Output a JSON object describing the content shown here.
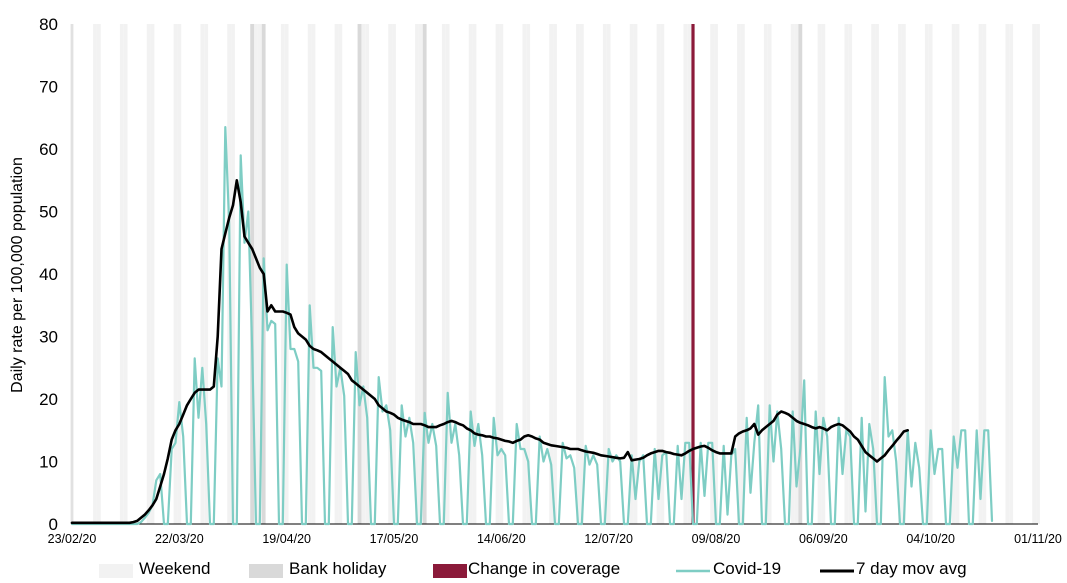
{
  "chart_data": {
    "type": "line",
    "ylabel": "Daily rate per 100,000 population",
    "ylim": [
      0,
      80
    ],
    "yticks": [
      0,
      10,
      20,
      30,
      40,
      50,
      60,
      70,
      80
    ],
    "xlim": [
      "23/02/20",
      "01/11/20"
    ],
    "x_tick_labels": [
      "23/02/20",
      "22/03/20",
      "19/04/20",
      "17/05/20",
      "14/06/20",
      "12/07/20",
      "09/08/20",
      "06/09/20",
      "04/10/20",
      "01/11/20"
    ],
    "change_in_coverage_date": "03/08/20",
    "bank_holidays": [
      "10/04/20",
      "13/04/20",
      "08/05/20",
      "25/05/20",
      "31/08/20"
    ],
    "colors": {
      "weekend": "#f2f2f2",
      "bank_holiday": "#d9d9d9",
      "change_in_coverage": "#8b1a3a",
      "covid": "#7ecdc4",
      "moving_avg": "#000000"
    },
    "legend": [
      "Weekend",
      "Bank holiday",
      "Change in coverage",
      "Covid-19",
      "7 day mov avg"
    ],
    "legend_position": "bottom",
    "series": [
      {
        "name": "Covid-19",
        "start": "23/02/20",
        "values": [
          0,
          0,
          0,
          0,
          0,
          0,
          0,
          0,
          0,
          0,
          0,
          0,
          0,
          0,
          0,
          0,
          0,
          0,
          0.3,
          1,
          1.8,
          3,
          7,
          8,
          0,
          0,
          12,
          13,
          19.5,
          14,
          0,
          0,
          26.5,
          17,
          25,
          16,
          0,
          0,
          26.5,
          22,
          63.5,
          48,
          0,
          0,
          59,
          45,
          50,
          28,
          0,
          0,
          42.5,
          31,
          32.5,
          32,
          0,
          0,
          41.5,
          28,
          28,
          26,
          0,
          0,
          35,
          25,
          25,
          24.5,
          0,
          0,
          31.5,
          22,
          25,
          20.5,
          0,
          0,
          27.5,
          19,
          22,
          17,
          0,
          0,
          23.5,
          18,
          19,
          15,
          0,
          0,
          19,
          14,
          17,
          13,
          0,
          0,
          17.8,
          13,
          16,
          12.5,
          0,
          0,
          21,
          13,
          16,
          11,
          0,
          0,
          18,
          12.5,
          16,
          11,
          0,
          0,
          17,
          11,
          12,
          11,
          0,
          0,
          16,
          12,
          12,
          10,
          0,
          0,
          14,
          10,
          12,
          9.5,
          0,
          0,
          13,
          10.5,
          11,
          9,
          0,
          0,
          12.5,
          9.5,
          11,
          9.5,
          0,
          0,
          12,
          10,
          11,
          10,
          0,
          0,
          11,
          4,
          10,
          11,
          0,
          0,
          12,
          4,
          11,
          11.5,
          0,
          0,
          12.5,
          4,
          13,
          13,
          0,
          0,
          13,
          4.5,
          13,
          13,
          0,
          0,
          12.5,
          1.5,
          11,
          12,
          0,
          0,
          17,
          5,
          13,
          19,
          0,
          0,
          19,
          10,
          18,
          12,
          0,
          0,
          18,
          6,
          12,
          23,
          0,
          0,
          18,
          8,
          17,
          14,
          0,
          0,
          17,
          8,
          15,
          14,
          0,
          0,
          17,
          2,
          16,
          12,
          0,
          0,
          23.5,
          14,
          15,
          10,
          0,
          0,
          15,
          6,
          13,
          9,
          0,
          0,
          15,
          8,
          12,
          12,
          0,
          0,
          14,
          9,
          15,
          15,
          0,
          0,
          15,
          4,
          15,
          15,
          0.5
        ]
      },
      {
        "name": "7 day mov avg",
        "start": "23/02/20",
        "values": [
          0.2,
          0.2,
          0.2,
          0.2,
          0.2,
          0.2,
          0.2,
          0.2,
          0.2,
          0.2,
          0.2,
          0.2,
          0.2,
          0.2,
          0.2,
          0.2,
          0.3,
          0.5,
          1,
          1.5,
          2.2,
          3,
          4,
          6,
          8,
          10.5,
          13.5,
          15,
          16,
          17.5,
          19,
          20,
          21,
          21.5,
          21.5,
          21.5,
          21.5,
          22,
          30,
          44,
          46.5,
          49,
          51,
          55,
          51.5,
          46,
          45,
          44,
          42.5,
          41,
          40,
          34,
          35,
          34,
          34,
          34,
          33.8,
          33.5,
          31.5,
          30.5,
          30,
          29.5,
          28.5,
          28,
          27.8,
          27.5,
          27,
          26.5,
          26,
          25.5,
          25,
          24.5,
          24,
          23,
          22.5,
          22,
          21.5,
          21,
          20.5,
          20,
          19,
          18.5,
          18,
          17.8,
          17.5,
          17,
          16.7,
          16.5,
          16.3,
          16,
          16,
          16,
          15.8,
          15.5,
          15.5,
          15.5,
          15.8,
          16,
          16.3,
          16.5,
          16.3,
          16,
          15.8,
          15.3,
          15,
          14.5,
          14.3,
          14.2,
          14,
          14,
          13.8,
          13.7,
          13.5,
          13.3,
          13.2,
          13,
          13.3,
          13.5,
          14,
          14.2,
          14,
          13.7,
          13.5,
          13,
          12.8,
          12.6,
          12.5,
          12.4,
          12.3,
          12.2,
          12,
          12,
          12,
          11.8,
          11.6,
          11.5,
          11.4,
          11.2,
          11,
          10.9,
          10.8,
          10.7,
          10.6,
          10.5,
          10.6,
          11.5,
          10.2,
          10.3,
          10.4,
          10.6,
          11,
          11.3,
          11.5,
          11.7,
          11.7,
          11.5,
          11.4,
          11.2,
          11.1,
          11,
          11.3,
          11.7,
          12,
          12.2,
          12.4,
          12.5,
          12.2,
          11.8,
          11.5,
          11.3,
          11.3,
          11.3,
          11.3,
          14,
          14.5,
          14.8,
          15,
          15.3,
          16,
          14.3,
          15,
          15.5,
          16,
          16.5,
          17.5,
          18,
          17.8,
          17.5,
          17,
          16.5,
          16.2,
          16,
          15.8,
          15.5,
          15.3,
          15.5,
          15.3,
          15,
          15.5,
          15.8,
          16,
          15.8,
          15.3,
          14.8,
          14,
          13.5,
          12.5,
          11.5,
          11,
          10.5,
          10,
          10.5,
          11,
          11.8,
          12.5,
          13.3,
          14,
          14.8,
          15
        ]
      }
    ]
  }
}
